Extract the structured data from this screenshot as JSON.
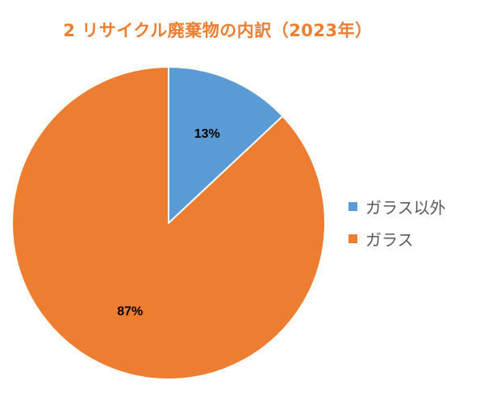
{
  "chart_data": {
    "type": "pie",
    "title": "2 リサイクル廃棄物の内訳（2023年）",
    "categories": [
      "ガラス以外",
      "ガラス"
    ],
    "values": [
      13,
      87
    ],
    "data_labels": [
      "13%",
      "87%"
    ],
    "colors": [
      "#5B9BD5",
      "#ED7D31"
    ],
    "title_color": "#ED7D31",
    "legend_position": "right"
  }
}
